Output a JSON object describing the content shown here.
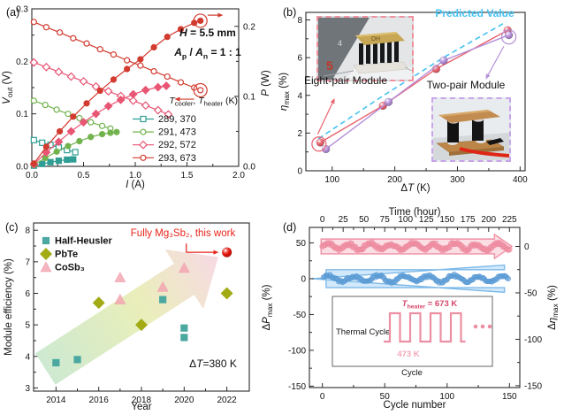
{
  "panel_labels": {
    "a": "(a)",
    "b": "(b)",
    "c": "(c)",
    "d": "(d)"
  },
  "overlay_texts": {
    "a_geometry": "*H* = 5.5 mm",
    "a_area_ratio": "*A*_{p} / *A*_{n} = 1 : 1",
    "b_predicted": "Predicted Value",
    "b_eight_pair": "Eight-pair Module",
    "b_two_pair": "Two-pair Module",
    "c_this_work": "Fully Mg₃Sb₂, this work",
    "c_delta_t": "Δ*T*=380 K",
    "photo_mark": "5"
  },
  "colors": {
    "teal": "#2f9e94",
    "green": "#72b34d",
    "pink": "#e85674",
    "red": "#d23b2f",
    "predicted_cyan": "#45c2f2",
    "eight_pair_red": "#e8626e",
    "two_pair_purple": "#b48fd9",
    "this_work_red": "#e8231a",
    "halfheusler_teal": "#4aa8a0",
    "pbte_olive": "#a2ab14",
    "cosb3_pink": "#f2a2b0",
    "d_blue": "#5b9bd5",
    "d_pink": "#ee8ba0"
  },
  "chart_data": [
    {
      "id": "a",
      "type": "line",
      "xlabel": "*I* (A)",
      "ylabel_left": "*V*_{out} (V)",
      "ylabel_right": "*P* (W)",
      "xlim": [
        0,
        2
      ],
      "ylim_left": [
        0,
        0.3
      ],
      "ylim_right": [
        0,
        0.225
      ],
      "x_ticks": {
        "values": [
          0,
          0.5,
          1,
          1.5,
          2
        ],
        "labels": [
          "0.0",
          "0.5",
          "1.0",
          "1.5",
          "2.0"
        ]
      },
      "y_ticks_left": {
        "values": [
          0,
          0.1,
          0.2,
          0.3
        ],
        "labels": [
          "0.0",
          "0.1",
          "0.2",
          "0.3"
        ]
      },
      "y_ticks_right": {
        "values": [
          0,
          0.1,
          0.2
        ],
        "labels": [
          "0.0",
          "0.1",
          "0.2"
        ]
      },
      "legend_title": "*T*_{cooler}, *T*_{heater} (K)",
      "legend": [
        {
          "label": "289, 370",
          "color": "#2f9e94",
          "marker": "square"
        },
        {
          "label": "291, 473",
          "color": "#72b34d",
          "marker": "circle"
        },
        {
          "label": "292, 572",
          "color": "#e85674",
          "marker": "diamond"
        },
        {
          "label": "293, 673",
          "color": "#d23b2f",
          "marker": "circle"
        }
      ],
      "series": [
        {
          "key": "v-289-370",
          "name": "V_out 289,370",
          "axis": "left",
          "marker": "square",
          "open": true,
          "color": "#2f9e94",
          "points": [
            [
              0.02,
              0.05
            ],
            [
              0.1,
              0.045
            ],
            [
              0.18,
              0.041
            ],
            [
              0.26,
              0.036
            ],
            [
              0.34,
              0.031
            ],
            [
              0.42,
              0.027
            ]
          ]
        },
        {
          "key": "p-289-370",
          "name": "P 289,370",
          "axis": "right",
          "marker": "square",
          "open": false,
          "color": "#2f9e94",
          "points": [
            [
              0.02,
              0.001
            ],
            [
              0.1,
              0.0035
            ],
            [
              0.18,
              0.006
            ],
            [
              0.26,
              0.008
            ],
            [
              0.34,
              0.0095
            ],
            [
              0.4,
              0.01
            ]
          ]
        },
        {
          "key": "v-291-473",
          "name": "V_out 291,473",
          "axis": "left",
          "marker": "circle",
          "open": true,
          "color": "#72b34d",
          "points": [
            [
              0.02,
              0.125
            ],
            [
              0.13,
              0.117
            ],
            [
              0.24,
              0.108
            ],
            [
              0.35,
              0.1
            ],
            [
              0.46,
              0.092
            ],
            [
              0.57,
              0.084
            ],
            [
              0.68,
              0.077
            ],
            [
              0.76,
              0.072
            ]
          ]
        },
        {
          "key": "p-291-473",
          "name": "P 291,473",
          "axis": "right",
          "marker": "circle",
          "open": false,
          "color": "#72b34d",
          "points": [
            [
              0.02,
              0.002
            ],
            [
              0.13,
              0.012
            ],
            [
              0.24,
              0.021
            ],
            [
              0.35,
              0.029
            ],
            [
              0.46,
              0.036
            ],
            [
              0.57,
              0.042
            ],
            [
              0.68,
              0.046
            ],
            [
              0.76,
              0.048
            ],
            [
              0.82,
              0.049
            ]
          ]
        },
        {
          "key": "v-292-572",
          "name": "V_out 292,572",
          "axis": "left",
          "marker": "diamond",
          "open": true,
          "color": "#e85674",
          "points": [
            [
              0.02,
              0.198
            ],
            [
              0.14,
              0.189
            ],
            [
              0.26,
              0.18
            ],
            [
              0.38,
              0.171
            ],
            [
              0.5,
              0.162
            ],
            [
              0.62,
              0.152
            ],
            [
              0.74,
              0.143
            ],
            [
              0.86,
              0.134
            ],
            [
              0.98,
              0.125
            ],
            [
              1.1,
              0.116
            ],
            [
              1.22,
              0.107
            ],
            [
              1.32,
              0.099
            ]
          ]
        },
        {
          "key": "p-292-572",
          "name": "P 292,572",
          "axis": "right",
          "marker": "diamond",
          "open": false,
          "color": "#e85674",
          "points": [
            [
              0.02,
              0.003
            ],
            [
              0.14,
              0.02
            ],
            [
              0.26,
              0.035
            ],
            [
              0.38,
              0.05
            ],
            [
              0.5,
              0.063
            ],
            [
              0.62,
              0.075
            ],
            [
              0.74,
              0.086
            ],
            [
              0.86,
              0.095
            ],
            [
              0.98,
              0.103
            ],
            [
              1.1,
              0.109
            ],
            [
              1.22,
              0.113
            ],
            [
              1.3,
              0.115
            ]
          ]
        },
        {
          "key": "v-293-673",
          "name": "V_out 293,673",
          "axis": "left",
          "marker": "circle",
          "open": true,
          "color": "#d23b2f",
          "points": [
            [
              0.02,
              0.275
            ],
            [
              0.14,
              0.265
            ],
            [
              0.27,
              0.255
            ],
            [
              0.4,
              0.244
            ],
            [
              0.53,
              0.234
            ],
            [
              0.66,
              0.223
            ],
            [
              0.79,
              0.213
            ],
            [
              0.92,
              0.202
            ],
            [
              1.05,
              0.192
            ],
            [
              1.18,
              0.181
            ],
            [
              1.31,
              0.171
            ],
            [
              1.44,
              0.16
            ],
            [
              1.57,
              0.15
            ],
            [
              1.63,
              0.145
            ]
          ]
        },
        {
          "key": "p-293-673",
          "name": "P 293,673",
          "axis": "right",
          "marker": "circle",
          "open": false,
          "color": "#d23b2f",
          "points": [
            [
              0.02,
              0.004
            ],
            [
              0.14,
              0.028
            ],
            [
              0.27,
              0.05
            ],
            [
              0.4,
              0.071
            ],
            [
              0.53,
              0.09
            ],
            [
              0.66,
              0.108
            ],
            [
              0.79,
              0.124
            ],
            [
              0.92,
              0.139
            ],
            [
              1.05,
              0.153
            ],
            [
              1.18,
              0.17
            ],
            [
              1.31,
              0.185
            ],
            [
              1.44,
              0.196
            ],
            [
              1.57,
              0.205
            ],
            [
              1.63,
              0.208
            ]
          ]
        }
      ],
      "highlight_rings": [
        {
          "axis": "left",
          "x": 1.63,
          "y": 0.145,
          "color": "#d23b2f"
        },
        {
          "axis": "right",
          "x": 1.63,
          "y": 0.208,
          "color": "#d23b2f"
        }
      ],
      "arrows": [
        {
          "axis": "left",
          "from": [
            1.57,
            0.128
          ],
          "to": [
            1.38,
            0.128
          ],
          "color": "#d23b2f"
        },
        {
          "axis": "right",
          "from": [
            1.7,
            0.216
          ],
          "to": [
            1.85,
            0.216
          ],
          "color": "#d23b2f"
        }
      ]
    },
    {
      "id": "b",
      "type": "line",
      "xlabel": "Δ*T* (K)",
      "ylabel_left": "*η*_{max} (%)",
      "xlim": [
        58,
        408
      ],
      "ylim_left": [
        0,
        8.4
      ],
      "x_ticks": {
        "values": [
          100,
          200,
          300,
          400
        ],
        "labels": [
          "100",
          "200",
          "300",
          "400"
        ]
      },
      "y_ticks_left": {
        "values": [
          0,
          2,
          4,
          6,
          8
        ],
        "labels": [
          "0",
          "2",
          "4",
          "6",
          "8"
        ]
      },
      "series": [
        {
          "key": "predicted",
          "name": "Predicted Value",
          "color": "#45c2f2",
          "dashed": true,
          "marker": "none",
          "points": [
            [
              78,
              1.7
            ],
            [
              180,
              3.95
            ],
            [
              280,
              6.05
            ],
            [
              378,
              7.9
            ]
          ]
        },
        {
          "key": "eight-pair",
          "name": "Eight-pair Module",
          "color": "#e8626e",
          "marker": "sphere",
          "points": [
            [
              81,
              1.5
            ],
            [
              181,
              3.45
            ],
            [
              266,
              5.4
            ],
            [
              380,
              7.45
            ]
          ]
        },
        {
          "key": "two-pair",
          "name": "Two-pair Module",
          "color": "#b48fd9",
          "marker": "sphere",
          "points": [
            [
              90,
              1.15
            ],
            [
              190,
              3.65
            ],
            [
              278,
              5.85
            ],
            [
              382,
              7.2
            ]
          ]
        }
      ],
      "highlight_rings": [
        {
          "x": 79,
          "y": 1.42,
          "color": "#e8626e"
        },
        {
          "x": 382,
          "y": 7.1,
          "color": "#b48fd9"
        }
      ],
      "arrows": [
        {
          "from": [
            77,
            1.95
          ],
          "to": [
            104,
            3.85
          ],
          "color": "#e8626e"
        },
        {
          "from": [
            374,
            6.6
          ],
          "to": [
            345,
            4.85
          ],
          "color": "#b48fd9"
        }
      ]
    },
    {
      "id": "c",
      "type": "scatter",
      "xlabel": "Year",
      "ylabel_left": "Module efficiency (%)",
      "xlim": [
        2012.95,
        2023.05
      ],
      "ylim_left": [
        2.9,
        8.23
      ],
      "x_ticks": {
        "values": [
          2014,
          2016,
          2018,
          2020,
          2022
        ],
        "labels": [
          "2014",
          "2016",
          "2018",
          "2020",
          "2022"
        ]
      },
      "y_ticks_left": {
        "values": [
          3,
          4,
          5,
          6,
          7,
          8
        ],
        "labels": [
          "3",
          "4",
          "5",
          "6",
          "7",
          "8"
        ]
      },
      "series": [
        {
          "key": "half-heusler",
          "name": "Half-Heusler",
          "color": "#4aa8a0",
          "marker": "square",
          "points": [
            [
              2014,
              3.8
            ],
            [
              2015,
              3.9
            ],
            [
              2019,
              5.8
            ],
            [
              2020,
              4.9
            ],
            [
              2020,
              4.6
            ]
          ]
        },
        {
          "key": "pbte",
          "name": "PbTe",
          "color": "#a2ab14",
          "marker": "diamond",
          "points": [
            [
              2016,
              5.7
            ],
            [
              2018,
              5.0
            ],
            [
              2022,
              6.0
            ]
          ]
        },
        {
          "key": "cosb3",
          "name": "CoSb₃",
          "color": "#f2a2b0",
          "marker": "triangle",
          "points": [
            [
              2017,
              6.5
            ],
            [
              2017,
              5.8
            ],
            [
              2019,
              6.2
            ],
            [
              2020,
              6.8
            ]
          ]
        },
        {
          "key": "this-work",
          "name": "Fully Mg₃Sb₂, this work",
          "color": "#e8150d",
          "marker": "sphere",
          "points": [
            [
              2022,
              7.3
            ]
          ]
        }
      ],
      "trend_arrow": {
        "from": [
          2013.5,
          3.6
        ],
        "to": [
          2021.6,
          7.15
        ],
        "colors": [
          "#bfe3c4",
          "#e3eaa6",
          "#f5cfdc"
        ]
      },
      "elbow_arrow": {
        "points": [
          [
            2020.1,
            7.58
          ],
          [
            2020.1,
            7.3
          ],
          [
            2021.62,
            7.3
          ]
        ],
        "color": "#e8231a"
      }
    },
    {
      "id": "d",
      "type": "scatter",
      "xlabel_bottom": "Cycle number",
      "xlabel_top": "Time (hour)",
      "ylabel_left": "Δ*P*_{max} (%)",
      "ylabel_right": "Δ*η*_{max} (%)",
      "xlim": [
        -10.4,
        158.3
      ],
      "hours_per_cycle": 1.5,
      "ylim_left": [
        -152,
        71.6
      ],
      "ylim_right": [
        -152,
        20.5
      ],
      "x_ticks_bottom": {
        "values": [
          0,
          50,
          100,
          150
        ],
        "labels": [
          "0",
          "50",
          "100",
          "150"
        ]
      },
      "x_ticks_top": {
        "values": [
          0,
          25,
          50,
          75,
          100,
          125,
          150,
          175,
          200,
          225
        ],
        "labels": [
          "0",
          "25",
          "50",
          "75",
          "100",
          "125",
          "150",
          "175",
          "200",
          "225"
        ]
      },
      "y_ticks_left": {
        "values": [
          50,
          0,
          -50,
          -100,
          -150
        ],
        "labels": [
          "50",
          "0",
          "-50",
          "-100",
          "-150"
        ]
      },
      "y_ticks_right": {
        "values": [
          0,
          -50,
          -100,
          -150
        ],
        "labels": [
          "0",
          "-50",
          "-100",
          "-150"
        ]
      },
      "series": [
        {
          "key": "delta-p",
          "name": "ΔP_max stability",
          "axis": "left",
          "color": "#5b9bd5",
          "band": {
            "x_from": 3,
            "x_to": 146,
            "tip": -8.5,
            "center": 0,
            "half": 12.5,
            "head_half": 19,
            "dir": "left",
            "fill": "rgba(137,196,244,0.38)",
            "stroke": "#7db9e8"
          },
          "pattern": {
            "count": 148,
            "x0": 1,
            "x1": 149,
            "mean": 0,
            "amp": 4.0,
            "period": 20,
            "noise": 3.4,
            "seed": 13,
            "r": 2.7
          }
        },
        {
          "key": "delta-eta",
          "name": "Δη_max stability",
          "axis": "right",
          "color": "#ee8ba0",
          "band": {
            "x_from": -1,
            "x_to": 138,
            "tip": 152,
            "center": 0,
            "half": 8,
            "head_half": 13,
            "dir": "right",
            "fill": "rgba(244,166,183,0.38)",
            "stroke": "#ef92a5"
          },
          "pattern": {
            "count": 148,
            "x0": 0,
            "x1": 150,
            "mean": 0,
            "amp": 3.2,
            "period": 17,
            "noise": 3.0,
            "seed": 7,
            "r": 2.9
          }
        }
      ],
      "inset": {
        "labels": {
          "thermal_cycle": "Thermal Cycle",
          "t_heater": "*T*_{heater} = 673 K",
          "t_low": "473 K",
          "xlabel": "Cycle"
        },
        "wave_color": "#ec8fa2",
        "t_heater_color": "#d5486a",
        "t_low_color": "#f2a8b8"
      }
    }
  ]
}
